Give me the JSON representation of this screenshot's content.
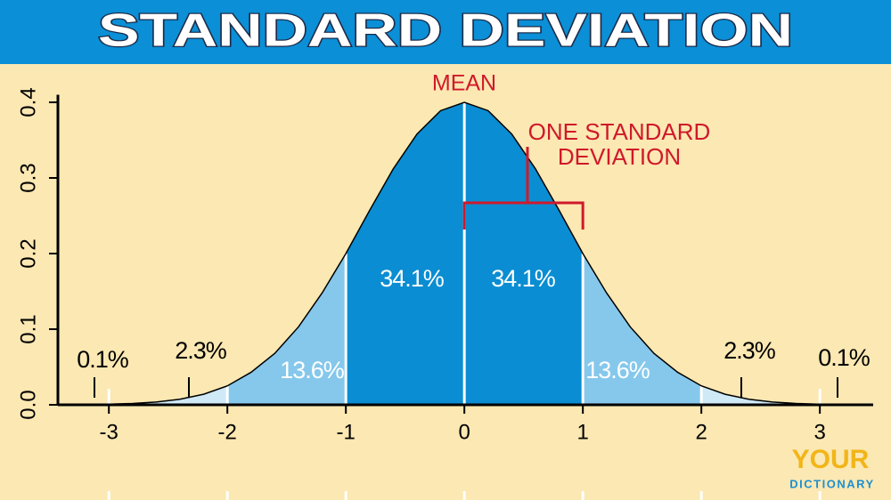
{
  "chart_data": {
    "type": "density",
    "title": "STANDARD DEVIATION",
    "x": [
      -3.4,
      -3.2,
      -3.0,
      -2.8,
      -2.6,
      -2.4,
      -2.2,
      -2.0,
      -1.8,
      -1.6,
      -1.4,
      -1.2,
      -1.0,
      -0.8,
      -0.6,
      -0.4,
      -0.2,
      0.0,
      0.2,
      0.4,
      0.6,
      0.8,
      1.0,
      1.2,
      1.4,
      1.6,
      1.8,
      2.0,
      2.2,
      2.4,
      2.6,
      2.8,
      3.0,
      3.2,
      3.4
    ],
    "values": [
      0.0001,
      0.0003,
      0.0008,
      0.0018,
      0.0037,
      0.0074,
      0.014,
      0.025,
      0.043,
      0.068,
      0.103,
      0.148,
      0.2,
      0.257,
      0.312,
      0.358,
      0.389,
      0.4,
      0.389,
      0.358,
      0.312,
      0.257,
      0.2,
      0.148,
      0.103,
      0.068,
      0.043,
      0.025,
      0.014,
      0.0074,
      0.0037,
      0.0018,
      0.0008,
      0.0003,
      0.0001
    ],
    "color": "#000000",
    "bands": [
      {
        "from": -3.4,
        "to": -3,
        "color": "#e4f2fa"
      },
      {
        "from": -3,
        "to": -2,
        "color": "#cfe9f7"
      },
      {
        "from": -2,
        "to": -1,
        "color": "#86c8ec"
      },
      {
        "from": -1,
        "to": 0,
        "color": "#0a8dd2"
      },
      {
        "from": 0,
        "to": 1,
        "color": "#0a8dd2"
      },
      {
        "from": 1,
        "to": 2,
        "color": "#86c8ec"
      },
      {
        "from": 2,
        "to": 3,
        "color": "#cfe9f7"
      },
      {
        "from": 3,
        "to": 3.4,
        "color": "#e4f2fa"
      }
    ],
    "band_labels": [
      "0.1%",
      "2.3%",
      "13.6%",
      "34.1%",
      "34.1%",
      "13.6%",
      "2.3%",
      "0.1%"
    ],
    "mean_label": "MEAN",
    "sd_label": [
      "ONE STANDARD",
      "DEVIATION"
    ],
    "xlim": [
      -3.43,
      3.45
    ],
    "ylim": [
      0,
      0.41
    ],
    "xticks": [
      -3,
      -2,
      -1,
      0,
      1,
      2,
      3
    ],
    "yticks": [
      {
        "value": 0,
        "label": "0.0"
      },
      0.1,
      0.2,
      0.3,
      0.4
    ],
    "logo": [
      "YOUR",
      "DICTIONARY"
    ]
  }
}
